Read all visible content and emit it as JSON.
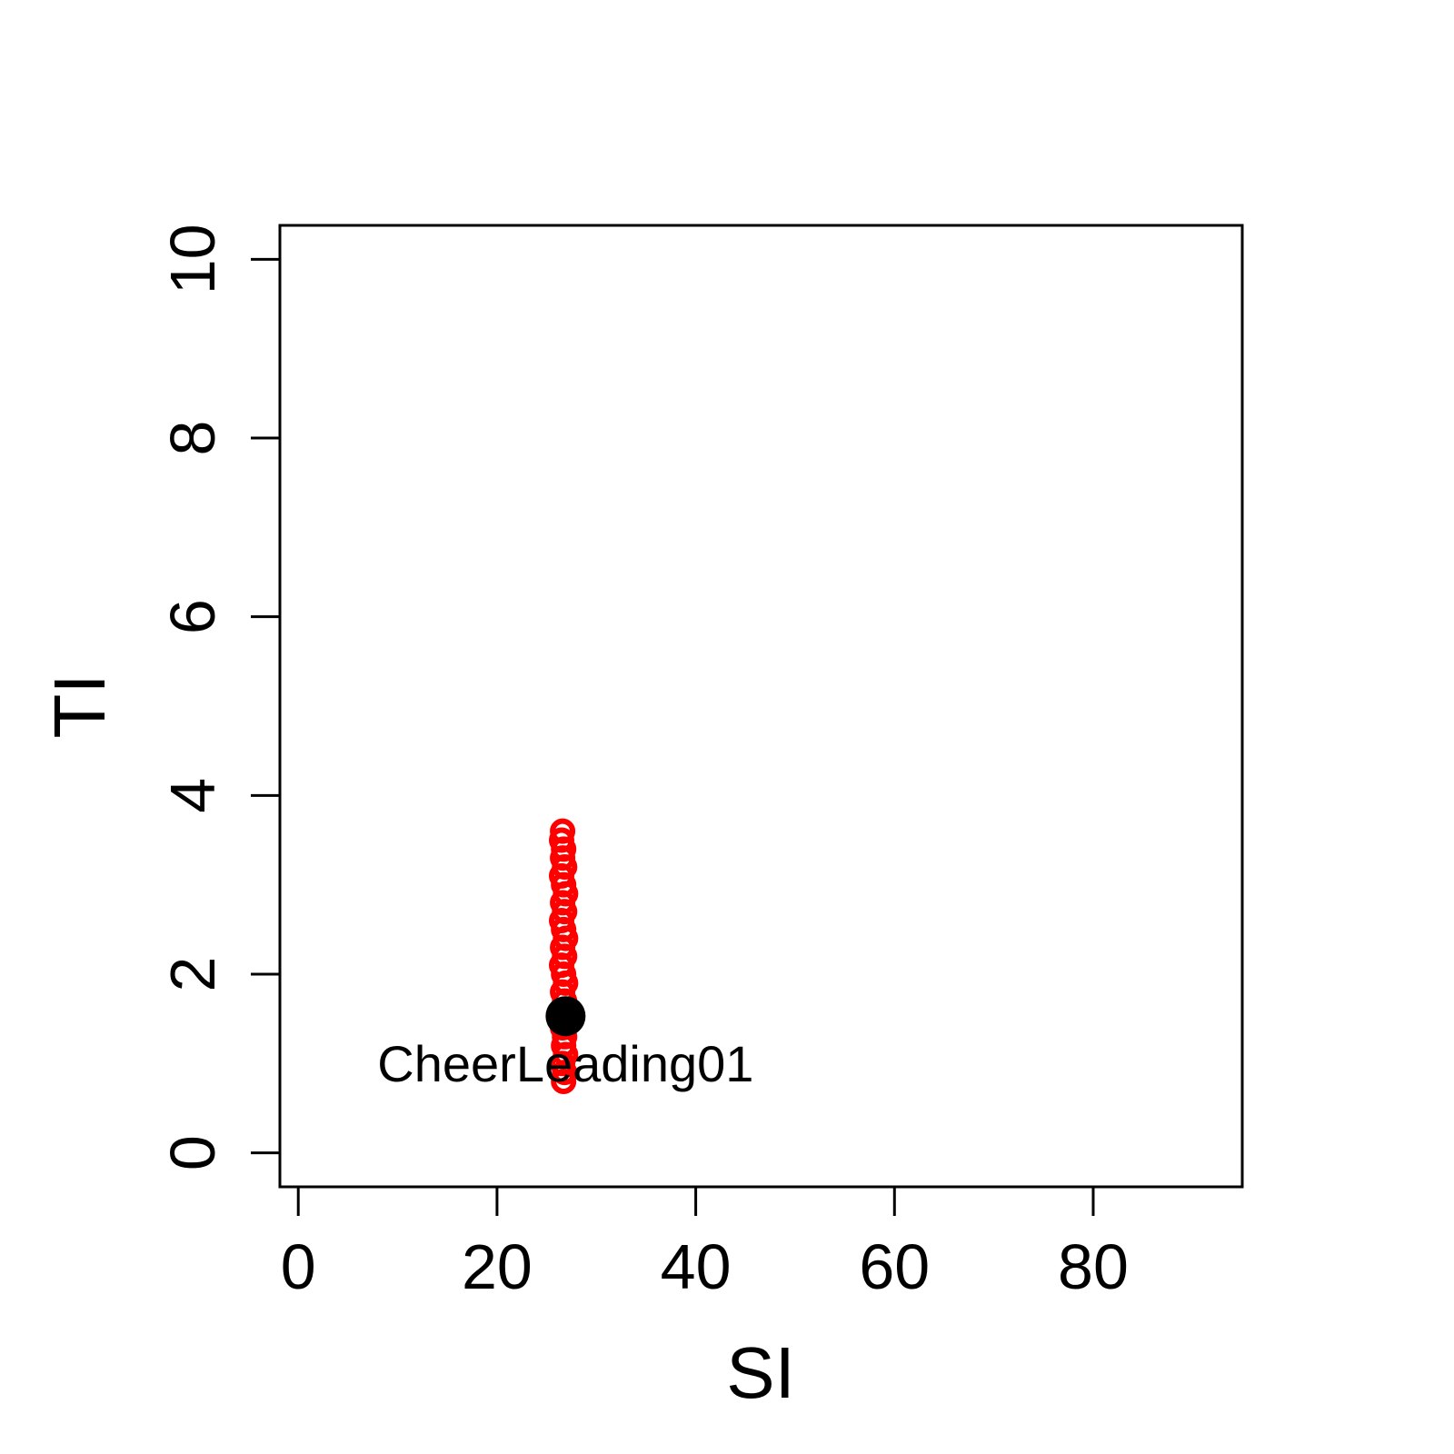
{
  "chart_data": {
    "type": "scatter",
    "title": "",
    "xlabel": "SI",
    "ylabel": "TI",
    "xlim": [
      -1.85,
      95
    ],
    "ylim": [
      -0.38,
      10.38
    ],
    "x_ticks": [
      0,
      20,
      40,
      60,
      80
    ],
    "y_ticks": [
      0,
      2,
      4,
      6,
      8,
      10
    ],
    "grid": false,
    "legend": "none",
    "series": [
      {
        "color": "#ff0000",
        "marker": "open-circle",
        "points": [
          {
            "x": 26.7,
            "y": 0.8
          },
          {
            "x": 26.8,
            "y": 0.9
          },
          {
            "x": 26.6,
            "y": 1.0
          },
          {
            "x": 26.9,
            "y": 1.1
          },
          {
            "x": 26.7,
            "y": 1.2
          },
          {
            "x": 26.8,
            "y": 1.3
          },
          {
            "x": 26.6,
            "y": 1.4
          },
          {
            "x": 26.9,
            "y": 1.5
          },
          {
            "x": 26.7,
            "y": 1.6
          },
          {
            "x": 26.8,
            "y": 1.7
          },
          {
            "x": 26.6,
            "y": 1.8
          },
          {
            "x": 26.9,
            "y": 1.9
          },
          {
            "x": 26.7,
            "y": 2.0
          },
          {
            "x": 26.5,
            "y": 2.1
          },
          {
            "x": 26.8,
            "y": 2.2
          },
          {
            "x": 26.6,
            "y": 2.3
          },
          {
            "x": 26.9,
            "y": 2.4
          },
          {
            "x": 26.7,
            "y": 2.5
          },
          {
            "x": 26.5,
            "y": 2.6
          },
          {
            "x": 26.8,
            "y": 2.7
          },
          {
            "x": 26.6,
            "y": 2.8
          },
          {
            "x": 26.9,
            "y": 2.9
          },
          {
            "x": 26.7,
            "y": 3.0
          },
          {
            "x": 26.5,
            "y": 3.1
          },
          {
            "x": 26.8,
            "y": 3.2
          },
          {
            "x": 26.6,
            "y": 3.3
          },
          {
            "x": 26.7,
            "y": 3.4
          },
          {
            "x": 26.5,
            "y": 3.5
          },
          {
            "x": 26.6,
            "y": 3.6
          }
        ]
      },
      {
        "color": "#000000",
        "marker": "filled-circle",
        "points": [
          {
            "x": 26.9,
            "y": 1.53,
            "label": "CheerLeading01"
          }
        ]
      }
    ]
  }
}
